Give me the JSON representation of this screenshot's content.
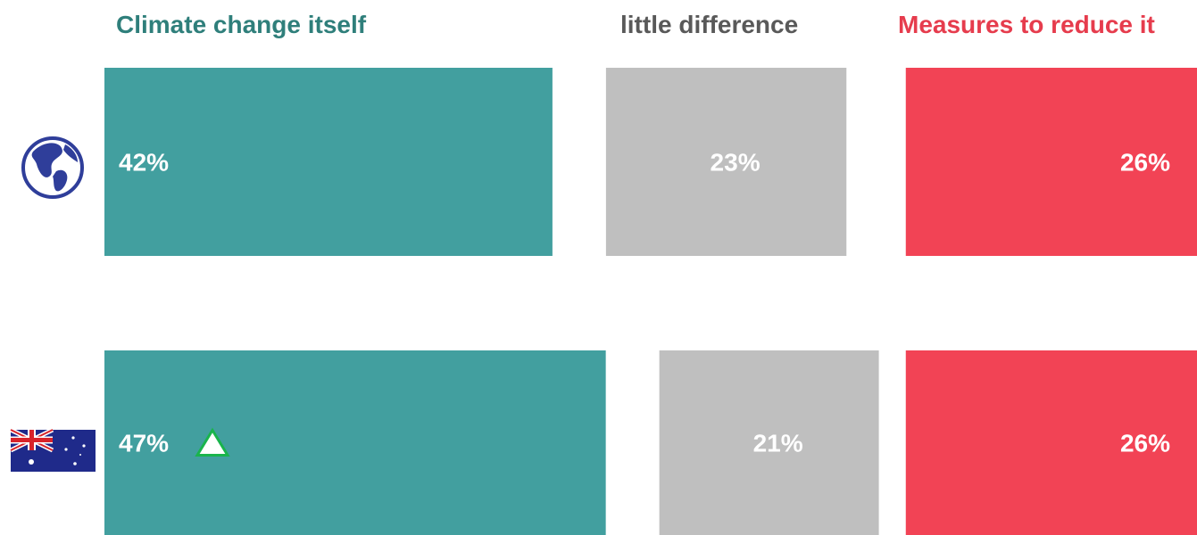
{
  "chart_data": {
    "type": "bar",
    "stacking": "diverging",
    "title": "",
    "categories": [
      "global",
      "australia"
    ],
    "category_icons": [
      "globe-icon",
      "australia-flag-icon"
    ],
    "series": [
      {
        "name": "Climate change itself",
        "values": [
          42,
          47
        ],
        "labels": [
          "42%",
          "47%"
        ],
        "color": "#429f9f"
      },
      {
        "name": "little difference",
        "values": [
          23,
          21
        ],
        "labels": [
          "23%",
          "21%"
        ],
        "color": "#bfbfbf"
      },
      {
        "name": "Measures to reduce it",
        "values": [
          26,
          26
        ],
        "labels": [
          "26%",
          "26%"
        ],
        "color": "#f24355"
      }
    ],
    "header_colors": [
      "#2f7f7b",
      "#595959",
      "#e63c4d"
    ],
    "annotations": [
      {
        "category": "australia",
        "series": "Climate change itself",
        "marker": "up-triangle-icon",
        "color": "#19b44c"
      }
    ],
    "legend": "top"
  }
}
